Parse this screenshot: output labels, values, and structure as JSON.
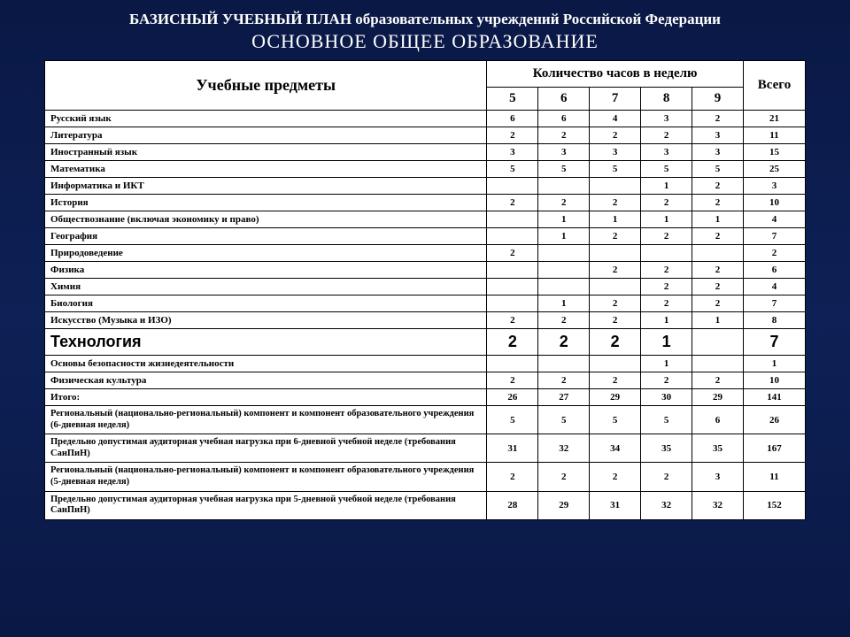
{
  "title": {
    "line1": "БАЗИСНЫЙ УЧЕБНЫЙ ПЛАН образовательных учреждений Российской Федерации",
    "line2": "ОСНОВНОЕ ОБЩЕЕ ОБРАЗОВАНИЕ"
  },
  "headers": {
    "subjects": "Учебные предметы",
    "hours_per_week": "Количество часов в неделю",
    "total": "Всего",
    "grades": [
      "5",
      "6",
      "7",
      "8",
      "9"
    ]
  },
  "rows": [
    {
      "subject": "Русский язык",
      "vals": [
        "6",
        "6",
        "4",
        "3",
        "2"
      ],
      "total": "21",
      "highlight": false,
      "long": false
    },
    {
      "subject": "Литература",
      "vals": [
        "2",
        "2",
        "2",
        "2",
        "3"
      ],
      "total": "11",
      "highlight": false,
      "long": false
    },
    {
      "subject": "Иностранный язык",
      "vals": [
        "3",
        "3",
        "3",
        "3",
        "3"
      ],
      "total": "15",
      "highlight": false,
      "long": false
    },
    {
      "subject": "Математика",
      "vals": [
        "5",
        "5",
        "5",
        "5",
        "5"
      ],
      "total": "25",
      "highlight": false,
      "long": false
    },
    {
      "subject": "Информатика и ИКТ",
      "vals": [
        "",
        "",
        "",
        "1",
        "2"
      ],
      "total": "3",
      "highlight": false,
      "long": false
    },
    {
      "subject": "История",
      "vals": [
        "2",
        "2",
        "2",
        "2",
        "2"
      ],
      "total": "10",
      "highlight": false,
      "long": false
    },
    {
      "subject": "Обществознание (включая экономику и право)",
      "vals": [
        "",
        "1",
        "1",
        "1",
        "1"
      ],
      "total": "4",
      "highlight": false,
      "long": false
    },
    {
      "subject": "География",
      "vals": [
        "",
        "1",
        "2",
        "2",
        "2"
      ],
      "total": "7",
      "highlight": false,
      "long": false
    },
    {
      "subject": "Природоведение",
      "vals": [
        "2",
        "",
        "",
        "",
        ""
      ],
      "total": "2",
      "highlight": false,
      "long": false
    },
    {
      "subject": "Физика",
      "vals": [
        "",
        "",
        "2",
        "2",
        "2"
      ],
      "total": "6",
      "highlight": false,
      "long": false
    },
    {
      "subject": "Химия",
      "vals": [
        "",
        "",
        "",
        "2",
        "2"
      ],
      "total": "4",
      "highlight": false,
      "long": false
    },
    {
      "subject": "Биология",
      "vals": [
        "",
        "1",
        "2",
        "2",
        "2"
      ],
      "total": "7",
      "highlight": false,
      "long": false
    },
    {
      "subject": "Искусство (Музыка и ИЗО)",
      "vals": [
        "2",
        "2",
        "2",
        "1",
        "1"
      ],
      "total": "8",
      "highlight": false,
      "long": false
    },
    {
      "subject": "Технология",
      "vals": [
        "2",
        "2",
        "2",
        "1",
        ""
      ],
      "total": "7",
      "highlight": true,
      "long": false
    },
    {
      "subject": "Основы безопасности жизнедеятельности",
      "vals": [
        "",
        "",
        "",
        "1",
        ""
      ],
      "total": "1",
      "highlight": false,
      "long": false
    },
    {
      "subject": "Физическая культура",
      "vals": [
        "2",
        "2",
        "2",
        "2",
        "2"
      ],
      "total": "10",
      "highlight": false,
      "long": false
    },
    {
      "subject": "Итого:",
      "vals": [
        "26",
        "27",
        "29",
        "30",
        "29"
      ],
      "total": "141",
      "highlight": false,
      "long": false
    },
    {
      "subject": "Региональный (национально-региональный) компонент и компонент образовательного учреждения (6-дневная неделя)",
      "vals": [
        "5",
        "5",
        "5",
        "5",
        "6"
      ],
      "total": "26",
      "highlight": false,
      "long": true
    },
    {
      "subject": "Предельно допустимая аудиторная учебная нагрузка при 6-дневной учебной неделе (требования СанПиН)",
      "vals": [
        "31",
        "32",
        "34",
        "35",
        "35"
      ],
      "total": "167",
      "highlight": false,
      "long": true
    },
    {
      "subject": "Региональный (национально-региональный) компонент и компонент образовательного учреждения (5-дневная неделя)",
      "vals": [
        "2",
        "2",
        "2",
        "2",
        "3"
      ],
      "total": "11",
      "highlight": false,
      "long": true
    },
    {
      "subject": "Предельно допустимая аудиторная учебная нагрузка при 5-дневной учебной неделе (требования СанПиН)",
      "vals": [
        "28",
        "29",
        "31",
        "32",
        "32"
      ],
      "total": "152",
      "highlight": false,
      "long": true
    }
  ],
  "colors": {
    "background_top": "#0a1845",
    "background_mid": "#0d2156",
    "text_title": "#ffffff",
    "table_bg": "#ffffff",
    "border": "#000000"
  }
}
